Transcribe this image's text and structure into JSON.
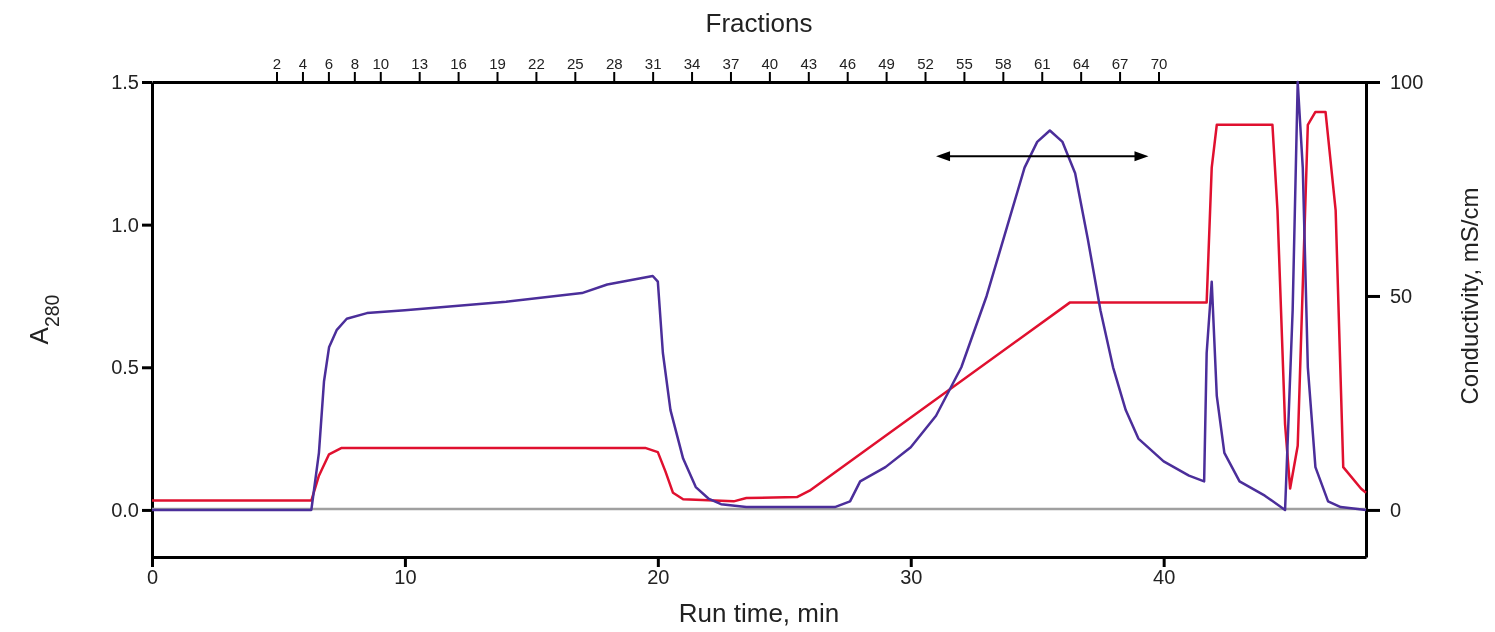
{
  "chart_data": {
    "type": "line",
    "xlabel": "Run time, min",
    "ylabel": "A$_{280}$",
    "y2label": "Conductivity, mS/cm",
    "x2label": "Fractions",
    "xlim": [
      0,
      48
    ],
    "xticks": [
      0,
      10,
      20,
      30,
      40
    ],
    "ylim": [
      -0.165,
      1.5
    ],
    "yticks": [
      {
        "value": 0,
        "label": "0.0"
      },
      {
        "value": 0.5,
        "label": "0.5"
      },
      {
        "value": 1,
        "label": "1.0"
      },
      1.5
    ],
    "y2lim": [
      -11,
      100
    ],
    "y2ticks": [
      0,
      50,
      100
    ],
    "x2lim": [
      -7.6,
      86
    ],
    "x2ticks": [
      2,
      4,
      6,
      8,
      10,
      13,
      16,
      19,
      22,
      25,
      28,
      31,
      34,
      37,
      40,
      43,
      46,
      49,
      52,
      55,
      58,
      61,
      64,
      67,
      70
    ],
    "grid": false,
    "marker": "none",
    "line_style": "solid",
    "series": [
      {
        "color": "#a0a0a0",
        "x": [
          0,
          48
        ],
        "values": [
          0.003,
          0.003
        ]
      },
      {
        "color": "#e0102f",
        "axis": "y2",
        "x": [
          0,
          6.3,
          6.6,
          7,
          7.5,
          8,
          19.5,
          20,
          20.3,
          20.6,
          21,
          23,
          23.5,
          25.5,
          26,
          36.3,
          41.7,
          41.9,
          42.1,
          44.3,
          44.5,
          44.8,
          45,
          45.3,
          45.7,
          46,
          46.4,
          46.8,
          47.1,
          47.8,
          48
        ],
        "values": [
          2.2,
          2.2,
          8,
          13,
          14.5,
          14.5,
          14.5,
          13.5,
          9,
          4,
          2.5,
          2,
          2.8,
          3,
          4.5,
          48.5,
          48.5,
          80,
          90,
          90,
          70,
          20,
          5,
          15,
          90,
          93,
          93,
          70,
          10,
          5,
          4
        ]
      },
      {
        "color": "#4b2e9a",
        "x": [
          0,
          6.3,
          6.6,
          6.8,
          7,
          7.3,
          7.7,
          8.5,
          10,
          14,
          17,
          18,
          19.8,
          20,
          20.2,
          20.5,
          21,
          21.5,
          22,
          22.5,
          23.5,
          27,
          27.6,
          28,
          29,
          30,
          31,
          32,
          33,
          34,
          34.5,
          35,
          35.5,
          36,
          36.5,
          37,
          37.5,
          38,
          38.5,
          39,
          40,
          41,
          41.6,
          41.7,
          41.9,
          42.1,
          42.4,
          43,
          44,
          44.8,
          45.1,
          45.3,
          45.5,
          45.7,
          46,
          46.5,
          47,
          48
        ],
        "values": [
          0,
          0,
          0.2,
          0.45,
          0.57,
          0.63,
          0.67,
          0.69,
          0.7,
          0.73,
          0.76,
          0.79,
          0.82,
          0.8,
          0.55,
          0.35,
          0.18,
          0.08,
          0.04,
          0.02,
          0.01,
          0.01,
          0.03,
          0.1,
          0.15,
          0.22,
          0.33,
          0.5,
          0.75,
          1.05,
          1.2,
          1.29,
          1.33,
          1.29,
          1.18,
          0.95,
          0.7,
          0.5,
          0.35,
          0.25,
          0.17,
          0.12,
          0.1,
          0.55,
          0.8,
          0.4,
          0.2,
          0.1,
          0.05,
          0,
          0.7,
          1.5,
          1.2,
          0.5,
          0.15,
          0.03,
          0.01,
          0
        ]
      }
    ]
  }
}
